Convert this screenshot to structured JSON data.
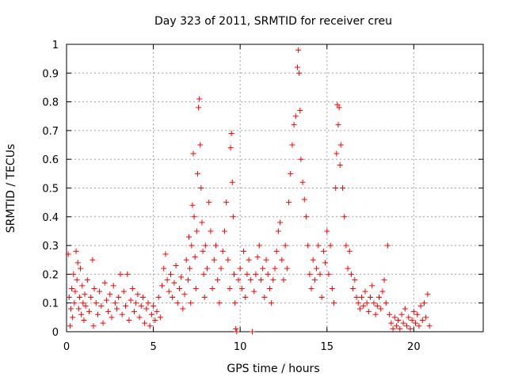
{
  "chart_data": {
    "type": "scatter",
    "title": "Day 323 of 2011, SRMTID for receiver creu",
    "xlabel": "GPS time / hours",
    "ylabel": "SRMTID / TECUs",
    "xlim": [
      0,
      24
    ],
    "ylim": [
      0,
      1
    ],
    "x_ticks": [
      0,
      5,
      10,
      15,
      20
    ],
    "y_ticks": [
      0,
      0.1,
      0.2,
      0.3,
      0.4,
      0.5,
      0.6,
      0.7,
      0.8,
      0.9,
      1
    ],
    "x_tick_labels": [
      "0",
      "5",
      "10",
      "15",
      "20"
    ],
    "y_tick_labels": [
      "0",
      "0.1",
      "0.2",
      "0.3",
      "0.4",
      "0.5",
      "0.6",
      "0.7",
      "0.8",
      "0.9",
      "1"
    ],
    "grid": true,
    "marker": "+",
    "color": "#ff0000",
    "series": [
      {
        "name": "",
        "points": [
          [
            0.1,
            0.27
          ],
          [
            0.15,
            0.12
          ],
          [
            0.2,
            0.02
          ],
          [
            0.25,
            0.08
          ],
          [
            0.3,
            0.15
          ],
          [
            0.35,
            0.05
          ],
          [
            0.4,
            0.2
          ],
          [
            0.45,
            0.1
          ],
          [
            0.5,
            0.14
          ],
          [
            0.55,
            0.28
          ],
          [
            0.6,
            0.18
          ],
          [
            0.65,
            0.24
          ],
          [
            0.7,
            0.08
          ],
          [
            0.75,
            0.12
          ],
          [
            0.8,
            0.22
          ],
          [
            0.85,
            0.06
          ],
          [
            0.9,
            0.16
          ],
          [
            0.95,
            0.1
          ],
          [
            1.0,
            0.04
          ],
          [
            1.05,
            0.13
          ],
          [
            1.1,
            0.09
          ],
          [
            1.2,
            0.18
          ],
          [
            1.3,
            0.07
          ],
          [
            1.4,
            0.12
          ],
          [
            1.5,
            0.25
          ],
          [
            1.55,
            0.02
          ],
          [
            1.6,
            0.15
          ],
          [
            1.7,
            0.1
          ],
          [
            1.8,
            0.06
          ],
          [
            1.9,
            0.14
          ],
          [
            2.0,
            0.09
          ],
          [
            2.1,
            0.03
          ],
          [
            2.2,
            0.17
          ],
          [
            2.3,
            0.11
          ],
          [
            2.4,
            0.07
          ],
          [
            2.5,
            0.13
          ],
          [
            2.6,
            0.05
          ],
          [
            2.7,
            0.16
          ],
          [
            2.8,
            0.1
          ],
          [
            2.9,
            0.08
          ],
          [
            3.0,
            0.12
          ],
          [
            3.1,
            0.2
          ],
          [
            3.2,
            0.06
          ],
          [
            3.3,
            0.14
          ],
          [
            3.4,
            0.09
          ],
          [
            3.5,
            0.2
          ],
          [
            3.6,
            0.04
          ],
          [
            3.7,
            0.11
          ],
          [
            3.8,
            0.15
          ],
          [
            3.9,
            0.07
          ],
          [
            4.0,
            0.1
          ],
          [
            4.1,
            0.13
          ],
          [
            4.2,
            0.05
          ],
          [
            4.3,
            0.09
          ],
          [
            4.4,
            0.12
          ],
          [
            4.5,
            0.03
          ],
          [
            4.6,
            0.08
          ],
          [
            4.7,
            0.1
          ],
          [
            4.8,
            0.02
          ],
          [
            4.9,
            0.06
          ],
          [
            5.0,
            0.09
          ],
          [
            5.1,
            0.04
          ],
          [
            5.2,
            0.07
          ],
          [
            5.3,
            0.12
          ],
          [
            5.4,
            0.05
          ],
          [
            5.5,
            0.16
          ],
          [
            5.6,
            0.22
          ],
          [
            5.7,
            0.27
          ],
          [
            5.8,
            0.18
          ],
          [
            5.9,
            0.14
          ],
          [
            6.0,
            0.2
          ],
          [
            6.1,
            0.12
          ],
          [
            6.2,
            0.17
          ],
          [
            6.3,
            0.23
          ],
          [
            6.4,
            0.1
          ],
          [
            6.5,
            0.15
          ],
          [
            6.6,
            0.19
          ],
          [
            6.7,
            0.08
          ],
          [
            6.8,
            0.13
          ],
          [
            6.9,
            0.25
          ],
          [
            7.0,
            0.18
          ],
          [
            7.05,
            0.33
          ],
          [
            7.1,
            0.22
          ],
          [
            7.15,
            0.1
          ],
          [
            7.2,
            0.3
          ],
          [
            7.25,
            0.44
          ],
          [
            7.3,
            0.62
          ],
          [
            7.35,
            0.4
          ],
          [
            7.4,
            0.26
          ],
          [
            7.45,
            0.15
          ],
          [
            7.5,
            0.35
          ],
          [
            7.55,
            0.55
          ],
          [
            7.6,
            0.78
          ],
          [
            7.65,
            0.81
          ],
          [
            7.7,
            0.65
          ],
          [
            7.75,
            0.5
          ],
          [
            7.8,
            0.38
          ],
          [
            7.85,
            0.28
          ],
          [
            7.9,
            0.2
          ],
          [
            7.95,
            0.12
          ],
          [
            8.0,
            0.3
          ],
          [
            8.1,
            0.22
          ],
          [
            8.2,
            0.45
          ],
          [
            8.3,
            0.35
          ],
          [
            8.4,
            0.15
          ],
          [
            8.5,
            0.25
          ],
          [
            8.6,
            0.3
          ],
          [
            8.7,
            0.18
          ],
          [
            8.8,
            0.1
          ],
          [
            8.9,
            0.22
          ],
          [
            9.0,
            0.28
          ],
          [
            9.1,
            0.35
          ],
          [
            9.2,
            0.45
          ],
          [
            9.3,
            0.25
          ],
          [
            9.4,
            0.15
          ],
          [
            9.45,
            0.64
          ],
          [
            9.5,
            0.69
          ],
          [
            9.55,
            0.52
          ],
          [
            9.6,
            0.4
          ],
          [
            9.65,
            0.2
          ],
          [
            9.7,
            0.1
          ],
          [
            9.75,
            0.01
          ],
          [
            9.8,
            0.0
          ],
          [
            9.9,
            0.18
          ],
          [
            10.0,
            0.22
          ],
          [
            10.1,
            0.15
          ],
          [
            10.2,
            0.28
          ],
          [
            10.3,
            0.12
          ],
          [
            10.4,
            0.2
          ],
          [
            10.5,
            0.25
          ],
          [
            10.6,
            0.18
          ],
          [
            10.7,
            0.0
          ],
          [
            10.8,
            0.14
          ],
          [
            10.9,
            0.2
          ],
          [
            11.0,
            0.26
          ],
          [
            11.1,
            0.3
          ],
          [
            11.2,
            0.18
          ],
          [
            11.3,
            0.22
          ],
          [
            11.4,
            0.12
          ],
          [
            11.5,
            0.25
          ],
          [
            11.6,
            0.2
          ],
          [
            11.7,
            0.15
          ],
          [
            11.8,
            0.1
          ],
          [
            11.9,
            0.18
          ],
          [
            12.0,
            0.22
          ],
          [
            12.1,
            0.28
          ],
          [
            12.2,
            0.35
          ],
          [
            12.3,
            0.38
          ],
          [
            12.4,
            0.25
          ],
          [
            12.5,
            0.18
          ],
          [
            12.6,
            0.3
          ],
          [
            12.7,
            0.22
          ],
          [
            12.8,
            0.45
          ],
          [
            12.9,
            0.55
          ],
          [
            13.0,
            0.65
          ],
          [
            13.1,
            0.72
          ],
          [
            13.2,
            0.75
          ],
          [
            13.3,
            0.92
          ],
          [
            13.35,
            0.98
          ],
          [
            13.4,
            0.9
          ],
          [
            13.45,
            0.77
          ],
          [
            13.5,
            0.6
          ],
          [
            13.6,
            0.52
          ],
          [
            13.7,
            0.46
          ],
          [
            13.8,
            0.4
          ],
          [
            13.9,
            0.3
          ],
          [
            14.0,
            0.2
          ],
          [
            14.1,
            0.15
          ],
          [
            14.2,
            0.25
          ],
          [
            14.3,
            0.18
          ],
          [
            14.4,
            0.22
          ],
          [
            14.5,
            0.3
          ],
          [
            14.6,
            0.2
          ],
          [
            14.7,
            0.12
          ],
          [
            14.8,
            0.28
          ],
          [
            14.9,
            0.24
          ],
          [
            15.0,
            0.35
          ],
          [
            15.1,
            0.2
          ],
          [
            15.2,
            0.3
          ],
          [
            15.3,
            0.15
          ],
          [
            15.4,
            0.1
          ],
          [
            15.5,
            0.5
          ],
          [
            15.55,
            0.62
          ],
          [
            15.6,
            0.79
          ],
          [
            15.65,
            0.72
          ],
          [
            15.7,
            0.78
          ],
          [
            15.75,
            0.58
          ],
          [
            15.8,
            0.65
          ],
          [
            15.9,
            0.5
          ],
          [
            16.0,
            0.4
          ],
          [
            16.1,
            0.3
          ],
          [
            16.2,
            0.22
          ],
          [
            16.3,
            0.28
          ],
          [
            16.4,
            0.2
          ],
          [
            16.5,
            0.15
          ],
          [
            16.6,
            0.18
          ],
          [
            16.7,
            0.12
          ],
          [
            16.8,
            0.1
          ],
          [
            16.9,
            0.08
          ],
          [
            17.0,
            0.12
          ],
          [
            17.1,
            0.09
          ],
          [
            17.2,
            0.14
          ],
          [
            17.3,
            0.1
          ],
          [
            17.4,
            0.07
          ],
          [
            17.5,
            0.12
          ],
          [
            17.6,
            0.16
          ],
          [
            17.7,
            0.1
          ],
          [
            17.8,
            0.06
          ],
          [
            17.9,
            0.09
          ],
          [
            18.0,
            0.12
          ],
          [
            18.1,
            0.08
          ],
          [
            18.2,
            0.14
          ],
          [
            18.3,
            0.18
          ],
          [
            18.4,
            0.1
          ],
          [
            18.5,
            0.3
          ],
          [
            18.6,
            0.06
          ],
          [
            18.7,
            0.03
          ],
          [
            18.8,
            0.01
          ],
          [
            18.9,
            0.05
          ],
          [
            19.0,
            0.02
          ],
          [
            19.1,
            0.04
          ],
          [
            19.2,
            0.01
          ],
          [
            19.3,
            0.06
          ],
          [
            19.4,
            0.03
          ],
          [
            19.5,
            0.08
          ],
          [
            19.6,
            0.02
          ],
          [
            19.7,
            0.05
          ],
          [
            19.8,
            0.01
          ],
          [
            19.9,
            0.04
          ],
          [
            20.0,
            0.07
          ],
          [
            20.1,
            0.03
          ],
          [
            20.2,
            0.06
          ],
          [
            20.3,
            0.02
          ],
          [
            20.4,
            0.09
          ],
          [
            20.5,
            0.04
          ],
          [
            20.6,
            0.1
          ],
          [
            20.7,
            0.05
          ],
          [
            20.8,
            0.13
          ],
          [
            20.9,
            0.02
          ]
        ]
      }
    ]
  }
}
